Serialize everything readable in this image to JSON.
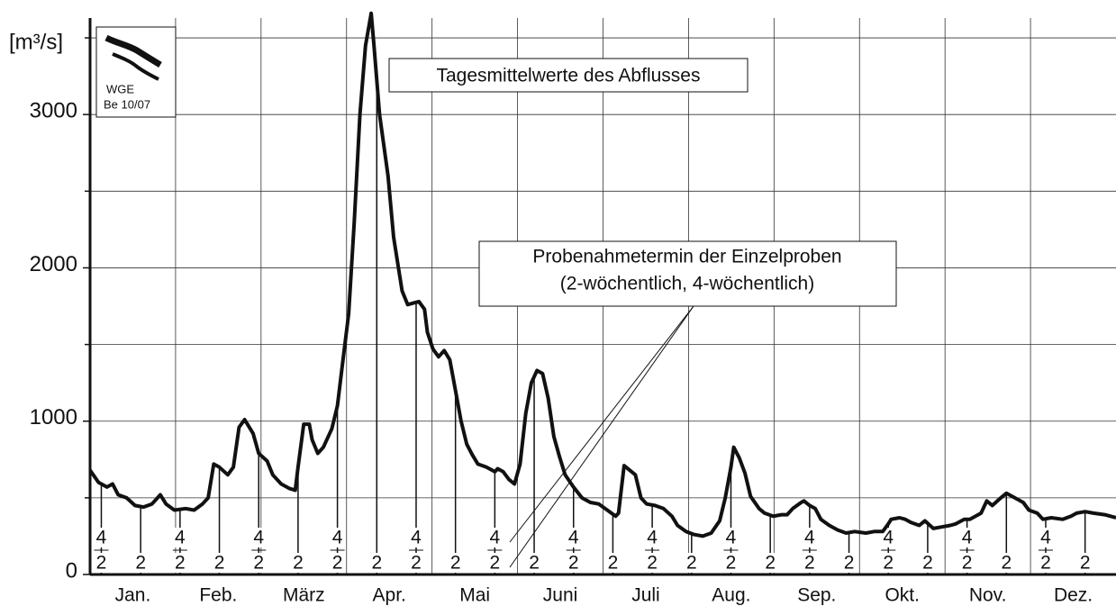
{
  "chart_data": {
    "type": "line",
    "unit_label": "[m³/s]",
    "annotation_main": "Tagesmittelwerte des Abflusses",
    "annotation_samples": [
      "Probenahmetermin der Einzelproben",
      "(2-wöchentlich, 4-wöchentlich)"
    ],
    "logo": [
      "WGE",
      "Be 10/07"
    ],
    "categories": [
      "Jan.",
      "Feb.",
      "März",
      "Apr.",
      "Mai",
      "Juni",
      "Juli",
      "Aug.",
      "Sep.",
      "Okt.",
      "Nov.",
      "Dez."
    ],
    "xlim": [
      0,
      365
    ],
    "ylim": [
      0,
      3700
    ],
    "yticks": [
      0,
      1000,
      2000,
      3000
    ],
    "ygrid_minor": [
      500,
      1500,
      2500,
      3500
    ],
    "color": "#111111",
    "x": [
      0,
      3,
      6,
      8,
      10,
      13,
      16,
      19,
      22,
      25,
      27,
      30,
      34,
      37,
      40,
      42,
      44,
      46,
      49,
      51,
      53,
      55,
      58,
      60,
      63,
      65,
      68,
      71,
      73,
      74,
      76,
      78,
      79,
      81,
      83,
      86,
      88,
      90,
      92,
      94,
      96,
      98,
      100,
      101,
      103,
      106,
      108,
      111,
      113,
      115,
      117,
      119,
      120,
      122,
      124,
      126,
      128,
      130,
      132,
      134,
      136,
      138,
      141,
      144,
      145,
      147,
      149,
      151,
      153,
      155,
      157,
      159,
      161,
      163,
      165,
      167,
      169,
      172,
      175,
      178,
      181,
      184,
      187,
      188,
      190,
      192,
      194,
      196,
      198,
      201,
      204,
      207,
      209,
      212,
      215,
      218,
      221,
      224,
      226,
      228,
      229,
      231,
      233,
      235,
      238,
      240,
      243,
      246,
      248,
      250,
      253,
      254,
      256,
      258,
      260,
      263,
      266,
      269,
      272,
      276,
      279,
      282,
      284,
      285,
      288,
      290,
      292,
      295,
      297,
      300,
      303,
      306,
      308,
      311,
      313,
      317,
      319,
      321,
      324,
      326,
      329,
      332,
      334,
      337,
      339,
      342,
      346,
      349,
      351,
      354,
      357,
      361,
      365
    ],
    "values": [
      680,
      600,
      570,
      590,
      520,
      500,
      450,
      440,
      460,
      520,
      460,
      420,
      430,
      420,
      460,
      500,
      720,
      700,
      650,
      700,
      960,
      1010,
      920,
      790,
      740,
      650,
      590,
      560,
      550,
      700,
      980,
      980,
      880,
      790,
      830,
      950,
      1100,
      1400,
      1700,
      2300,
      3000,
      3450,
      3660,
      3450,
      3000,
      2600,
      2200,
      1850,
      1760,
      1770,
      1780,
      1730,
      1580,
      1470,
      1420,
      1460,
      1400,
      1200,
      1000,
      850,
      780,
      720,
      700,
      670,
      690,
      670,
      620,
      590,
      720,
      1050,
      1250,
      1330,
      1310,
      1150,
      900,
      770,
      650,
      570,
      500,
      470,
      460,
      420,
      380,
      400,
      710,
      680,
      650,
      500,
      460,
      450,
      430,
      380,
      320,
      280,
      260,
      250,
      270,
      350,
      500,
      700,
      830,
      760,
      660,
      510,
      430,
      400,
      380,
      390,
      390,
      430,
      470,
      480,
      450,
      430,
      360,
      320,
      290,
      270,
      280,
      270,
      280,
      280,
      330,
      360,
      370,
      360,
      340,
      320,
      350,
      300,
      310,
      320,
      330,
      360,
      360,
      400,
      480,
      450,
      500,
      530,
      500,
      470,
      420,
      400,
      360,
      370,
      360,
      380,
      400,
      410,
      400,
      390,
      370
    ],
    "sampling": {
      "label_2": "2",
      "label_4": "4",
      "days_2": [
        4,
        18,
        32,
        46,
        60,
        74,
        88,
        102,
        116,
        130,
        144,
        158,
        172,
        186,
        200,
        214,
        228,
        242,
        256,
        270,
        284,
        298,
        312,
        326,
        340,
        354
      ],
      "days_4": [
        4,
        32,
        60,
        88,
        116,
        144,
        172,
        200,
        228,
        256,
        284,
        312,
        340
      ]
    }
  }
}
